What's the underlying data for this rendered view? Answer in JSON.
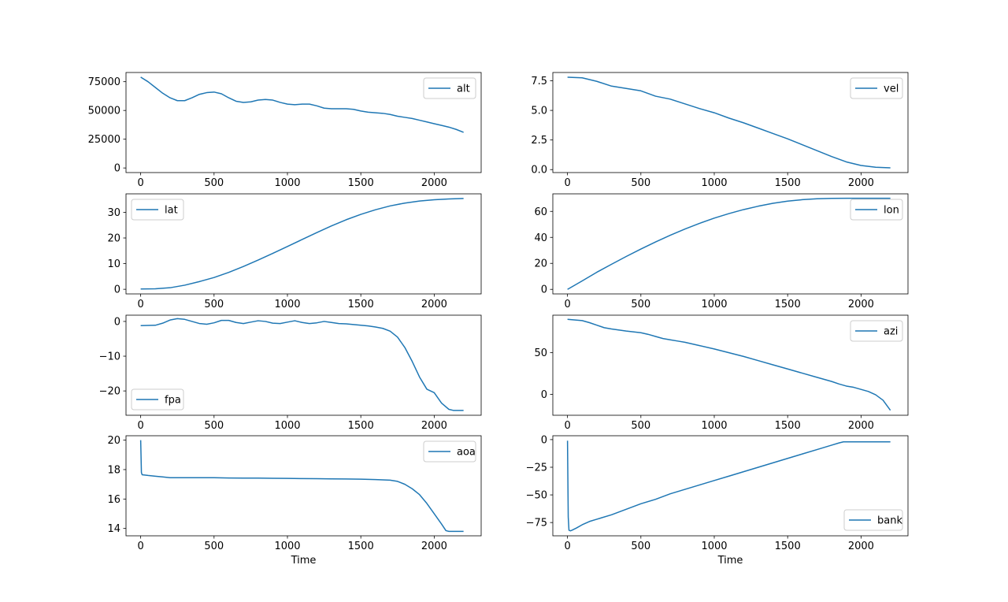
{
  "colors": {
    "line": "#1f77b4",
    "axes": "#000000",
    "legend_border": "#cccccc"
  },
  "chart_data": [
    {
      "type": "line",
      "id": "alt",
      "series": [
        {
          "name": "alt",
          "x": [
            0,
            50,
            100,
            150,
            200,
            250,
            300,
            350,
            400,
            450,
            500,
            550,
            600,
            650,
            700,
            750,
            800,
            850,
            900,
            950,
            1000,
            1050,
            1100,
            1150,
            1200,
            1250,
            1300,
            1350,
            1400,
            1450,
            1500,
            1550,
            1600,
            1650,
            1700,
            1750,
            1800,
            1850,
            1900,
            1950,
            2000,
            2050,
            2100,
            2150,
            2200
          ],
          "values": [
            79000,
            75000,
            70000,
            65000,
            61000,
            58500,
            58500,
            61000,
            64000,
            65500,
            66000,
            64500,
            61000,
            58000,
            57000,
            57500,
            59000,
            59500,
            59000,
            57000,
            55500,
            55000,
            55500,
            55500,
            54000,
            52000,
            51500,
            51500,
            51500,
            51000,
            49500,
            48500,
            48000,
            47500,
            46500,
            45000,
            44000,
            43000,
            41500,
            40000,
            38500,
            37000,
            35500,
            33500,
            31000
          ]
        }
      ],
      "xlabel": "",
      "ylabel": "",
      "xlim": [
        -100,
        2320
      ],
      "ylim": [
        -4000,
        83000
      ],
      "xticks": [
        0,
        500,
        1000,
        1500,
        2000
      ],
      "yticks": [
        0,
        25000,
        50000,
        75000
      ],
      "legend": "upper right"
    },
    {
      "type": "line",
      "id": "vel",
      "series": [
        {
          "name": "vel",
          "x": [
            0,
            100,
            200,
            300,
            400,
            500,
            600,
            700,
            800,
            900,
            1000,
            1100,
            1200,
            1300,
            1400,
            1500,
            1600,
            1700,
            1800,
            1900,
            2000,
            2100,
            2200
          ],
          "values": [
            7.8,
            7.75,
            7.45,
            7.05,
            6.85,
            6.65,
            6.2,
            5.95,
            5.55,
            5.15,
            4.8,
            4.35,
            3.95,
            3.5,
            3.05,
            2.6,
            2.1,
            1.6,
            1.1,
            0.65,
            0.35,
            0.2,
            0.15
          ]
        }
      ],
      "xlabel": "",
      "ylabel": "",
      "xlim": [
        -100,
        2320
      ],
      "ylim": [
        -0.25,
        8.2
      ],
      "xticks": [
        0,
        500,
        1000,
        1500,
        2000
      ],
      "yticks": [
        0.0,
        2.5,
        5.0,
        7.5
      ],
      "legend": "upper right"
    },
    {
      "type": "line",
      "id": "lat",
      "series": [
        {
          "name": "lat",
          "x": [
            0,
            100,
            200,
            300,
            400,
            500,
            600,
            700,
            800,
            900,
            1000,
            1100,
            1200,
            1300,
            1400,
            1500,
            1600,
            1700,
            1800,
            1900,
            2000,
            2100,
            2200
          ],
          "values": [
            0.1,
            0.2,
            0.6,
            1.6,
            3.0,
            4.6,
            6.6,
            8.9,
            11.4,
            14.0,
            16.7,
            19.4,
            22.1,
            24.7,
            27.1,
            29.2,
            31.0,
            32.5,
            33.6,
            34.4,
            34.9,
            35.2,
            35.4
          ]
        }
      ],
      "xlabel": "",
      "ylabel": "",
      "xlim": [
        -100,
        2320
      ],
      "ylim": [
        -1.8,
        37.2
      ],
      "xticks": [
        0,
        500,
        1000,
        1500,
        2000
      ],
      "yticks": [
        0,
        10,
        20,
        30
      ],
      "legend": "upper left"
    },
    {
      "type": "line",
      "id": "lon",
      "series": [
        {
          "name": "lon",
          "x": [
            0,
            100,
            200,
            300,
            400,
            500,
            600,
            700,
            800,
            900,
            1000,
            1100,
            1200,
            1300,
            1400,
            1500,
            1600,
            1700,
            1800,
            1900,
            2000,
            2100,
            2200
          ],
          "values": [
            0,
            6.5,
            13.2,
            19.3,
            25.3,
            31.0,
            36.5,
            41.6,
            46.4,
            50.8,
            54.8,
            58.3,
            61.4,
            64.0,
            66.2,
            67.9,
            69.0,
            69.7,
            70.0,
            70.1,
            70.1,
            70.1,
            70.1
          ]
        }
      ],
      "xlabel": "",
      "ylabel": "",
      "xlim": [
        -100,
        2320
      ],
      "ylim": [
        -3.5,
        73.5
      ],
      "xticks": [
        0,
        500,
        1000,
        1500,
        2000
      ],
      "yticks": [
        0,
        20,
        40,
        60
      ],
      "legend": "upper right"
    },
    {
      "type": "line",
      "id": "fpa",
      "series": [
        {
          "name": "fpa",
          "x": [
            0,
            100,
            150,
            200,
            250,
            300,
            350,
            400,
            450,
            500,
            550,
            600,
            650,
            700,
            750,
            800,
            850,
            900,
            950,
            1000,
            1050,
            1100,
            1150,
            1200,
            1250,
            1300,
            1350,
            1400,
            1450,
            1500,
            1550,
            1600,
            1650,
            1700,
            1750,
            1800,
            1850,
            1900,
            1950,
            2000,
            2050,
            2100,
            2130,
            2160,
            2200
          ],
          "values": [
            -1.2,
            -1.1,
            -0.5,
            0.4,
            0.8,
            0.6,
            0.0,
            -0.6,
            -0.8,
            -0.4,
            0.3,
            0.3,
            -0.3,
            -0.6,
            -0.2,
            0.2,
            0.0,
            -0.5,
            -0.6,
            -0.2,
            0.2,
            -0.3,
            -0.6,
            -0.4,
            0.0,
            -0.3,
            -0.6,
            -0.7,
            -0.9,
            -1.1,
            -1.3,
            -1.6,
            -2.0,
            -2.8,
            -4.5,
            -7.5,
            -11.5,
            -16.0,
            -19.5,
            -20.5,
            -23.5,
            -25.3,
            -25.6,
            -25.6,
            -25.6
          ]
        }
      ],
      "xlabel": "",
      "ylabel": "",
      "xlim": [
        -100,
        2320
      ],
      "ylim": [
        -27,
        1.8
      ],
      "xticks": [
        0,
        500,
        1000,
        1500,
        2000
      ],
      "yticks": [
        0,
        -10,
        -20
      ],
      "legend": "lower left"
    },
    {
      "type": "line",
      "id": "azi",
      "series": [
        {
          "name": "azi",
          "x": [
            0,
            100,
            150,
            200,
            250,
            300,
            400,
            500,
            550,
            600,
            650,
            700,
            750,
            800,
            900,
            1000,
            1100,
            1200,
            1300,
            1400,
            1500,
            1600,
            1700,
            1800,
            1850,
            1900,
            1950,
            2000,
            2050,
            2100,
            2150,
            2200
          ],
          "values": [
            90,
            88.5,
            86,
            83,
            80,
            78.5,
            76,
            74,
            72,
            69.5,
            67,
            65.5,
            64,
            62.5,
            58.5,
            54.5,
            50,
            45.5,
            40.5,
            35.5,
            30.5,
            25.5,
            20.5,
            15.5,
            12.5,
            10,
            8.5,
            6,
            3.5,
            -0.5,
            -7,
            -19
          ]
        }
      ],
      "xlabel": "",
      "ylabel": "",
      "xlim": [
        -100,
        2320
      ],
      "ylim": [
        -25,
        95
      ],
      "xticks": [
        0,
        500,
        1000,
        1500,
        2000
      ],
      "yticks": [
        0,
        50
      ],
      "legend": "upper right"
    },
    {
      "type": "line",
      "id": "aoa",
      "series": [
        {
          "name": "aoa",
          "x": [
            0,
            5,
            10,
            50,
            100,
            150,
            200,
            250,
            300,
            400,
            500,
            600,
            700,
            800,
            900,
            1000,
            1100,
            1200,
            1300,
            1400,
            1500,
            1600,
            1700,
            1750,
            1800,
            1850,
            1900,
            1950,
            2000,
            2050,
            2080,
            2100,
            2150,
            2200
          ],
          "values": [
            20.0,
            17.8,
            17.65,
            17.6,
            17.55,
            17.5,
            17.45,
            17.45,
            17.45,
            17.45,
            17.45,
            17.43,
            17.42,
            17.42,
            17.41,
            17.4,
            17.39,
            17.38,
            17.37,
            17.36,
            17.35,
            17.32,
            17.28,
            17.2,
            17.0,
            16.7,
            16.3,
            15.7,
            15.0,
            14.3,
            13.85,
            13.8,
            13.8,
            13.8
          ]
        }
      ],
      "xlabel": "Time",
      "ylabel": "",
      "xlim": [
        -100,
        2320
      ],
      "ylim": [
        13.5,
        20.3
      ],
      "xticks": [
        0,
        500,
        1000,
        1500,
        2000
      ],
      "yticks": [
        14,
        16,
        18,
        20
      ],
      "legend": "upper right"
    },
    {
      "type": "line",
      "id": "bank",
      "series": [
        {
          "name": "bank",
          "x": [
            0,
            5,
            10,
            20,
            30,
            60,
            100,
            150,
            200,
            300,
            400,
            500,
            600,
            700,
            800,
            900,
            1000,
            1100,
            1200,
            1300,
            1400,
            1500,
            1600,
            1700,
            1800,
            1850,
            1880,
            1900,
            2000,
            2100,
            2200
          ],
          "values": [
            -1,
            -70,
            -82,
            -82.5,
            -82,
            -80,
            -77,
            -74,
            -72,
            -68,
            -63,
            -58,
            -54,
            -49,
            -45,
            -41,
            -37,
            -33,
            -29,
            -25,
            -21,
            -17,
            -13,
            -9,
            -5,
            -3,
            -2,
            -2,
            -2,
            -2,
            -2
          ]
        }
      ],
      "xlabel": "Time",
      "ylabel": "",
      "xlim": [
        -100,
        2320
      ],
      "ylim": [
        -87,
        3.5
      ],
      "xticks": [
        0,
        500,
        1000,
        1500,
        2000
      ],
      "yticks": [
        0,
        -25,
        -50,
        -75
      ],
      "legend": "lower right"
    }
  ]
}
